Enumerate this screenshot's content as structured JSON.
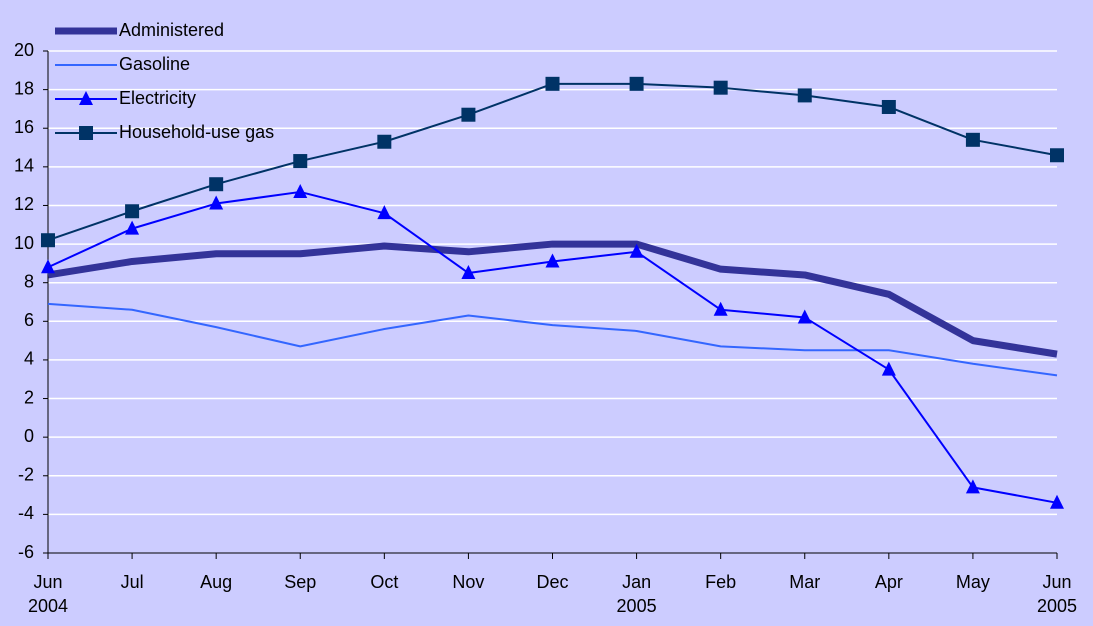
{
  "chart_data": {
    "type": "line",
    "categories": [
      "Jun",
      "Jul",
      "Aug",
      "Sep",
      "Oct",
      "Nov",
      "Dec",
      "Jan",
      "Feb",
      "Mar",
      "Apr",
      "May",
      "Jun"
    ],
    "x_sublabels": [
      "2004",
      null,
      null,
      null,
      null,
      null,
      null,
      "2005",
      null,
      null,
      null,
      null,
      "2005"
    ],
    "series": [
      {
        "name": "Administered",
        "color": "#333399",
        "line_width": 7,
        "marker": "none",
        "values": [
          8.4,
          9.1,
          9.5,
          9.5,
          9.9,
          9.6,
          10.0,
          10.0,
          8.7,
          8.4,
          7.4,
          5.0,
          4.3
        ]
      },
      {
        "name": "Gasoline",
        "color": "#3366ff",
        "line_width": 2,
        "marker": "none",
        "values": [
          6.9,
          6.6,
          5.7,
          4.7,
          5.6,
          6.3,
          5.8,
          5.5,
          4.7,
          4.5,
          4.5,
          3.8,
          3.2
        ]
      },
      {
        "name": "Electricity",
        "color": "#0000ff",
        "line_width": 2,
        "marker": "triangle",
        "values": [
          8.8,
          10.8,
          12.1,
          12.7,
          11.6,
          8.5,
          9.1,
          9.6,
          6.6,
          6.2,
          3.5,
          -2.6,
          -3.4
        ]
      },
      {
        "name": "Household-use gas",
        "color": "#003366",
        "line_width": 2,
        "marker": "square",
        "values": [
          10.2,
          11.7,
          13.1,
          14.3,
          15.3,
          16.7,
          18.3,
          18.3,
          18.1,
          17.7,
          17.1,
          15.4,
          14.6
        ]
      }
    ],
    "ylim": [
      -6,
      20
    ],
    "yticks": [
      -6,
      -4,
      -2,
      0,
      2,
      4,
      6,
      8,
      10,
      12,
      14,
      16,
      18,
      20
    ],
    "grid": true,
    "legend": "top-left"
  }
}
